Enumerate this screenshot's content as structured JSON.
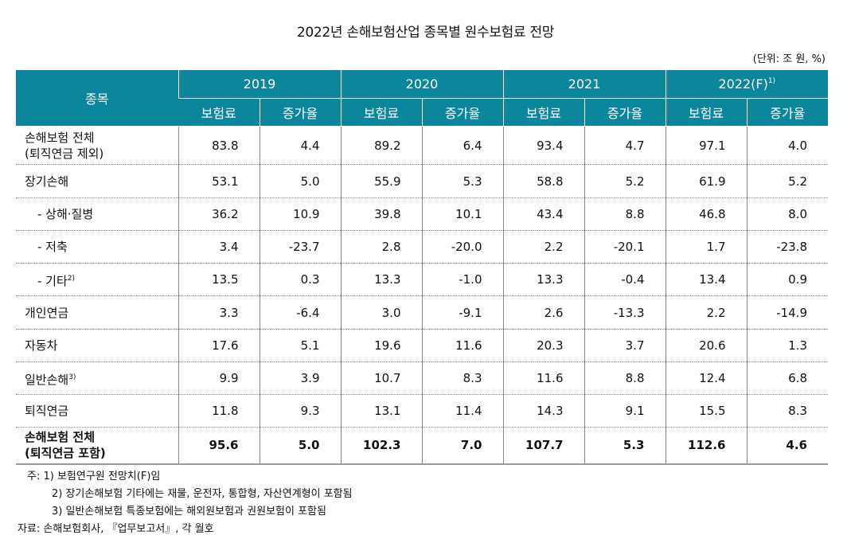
{
  "title": "2022년 손해보험산업 종목별 원수보험료 전망",
  "unit": "(단위: 조 원, %)",
  "table": {
    "item_header": "종목",
    "years": [
      {
        "label": "2019",
        "note": ""
      },
      {
        "label": "2020",
        "note": ""
      },
      {
        "label": "2021",
        "note": ""
      },
      {
        "label": "2022(F)",
        "note": "1)"
      }
    ],
    "sub_headers": [
      "보험료",
      "증가율"
    ],
    "rows": [
      {
        "label": "손해보험 전체",
        "label2": "(퇴직연금 제외)",
        "note": "",
        "indent": false,
        "bold": false,
        "values": [
          "83.8",
          "4.4",
          "89.2",
          "6.4",
          "93.4",
          "4.7",
          "97.1",
          "4.0"
        ]
      },
      {
        "label": "장기손해",
        "label2": "",
        "note": "",
        "indent": false,
        "bold": false,
        "values": [
          "53.1",
          "5.0",
          "55.9",
          "5.3",
          "58.8",
          "5.2",
          "61.9",
          "5.2"
        ]
      },
      {
        "label": "-  상해·질병",
        "label2": "",
        "note": "",
        "indent": true,
        "bold": false,
        "values": [
          "36.2",
          "10.9",
          "39.8",
          "10.1",
          "43.4",
          "8.8",
          "46.8",
          "8.0"
        ]
      },
      {
        "label": "-  저축",
        "label2": "",
        "note": "",
        "indent": true,
        "bold": false,
        "values": [
          "3.4",
          "-23.7",
          "2.8",
          "-20.0",
          "2.2",
          "-20.1",
          "1.7",
          "-23.8"
        ]
      },
      {
        "label": "-  기타",
        "label2": "",
        "note": "2)",
        "indent": true,
        "bold": false,
        "values": [
          "13.5",
          "0.3",
          "13.3",
          "-1.0",
          "13.3",
          "-0.4",
          "13.4",
          "0.9"
        ]
      },
      {
        "label": "개인연금",
        "label2": "",
        "note": "",
        "indent": false,
        "bold": false,
        "values": [
          "3.3",
          "-6.4",
          "3.0",
          "-9.1",
          "2.6",
          "-13.3",
          "2.2",
          "-14.9"
        ]
      },
      {
        "label": "자동차",
        "label2": "",
        "note": "",
        "indent": false,
        "bold": false,
        "values": [
          "17.6",
          "5.1",
          "19.6",
          "11.6",
          "20.3",
          "3.7",
          "20.6",
          "1.3"
        ]
      },
      {
        "label": "일반손해",
        "label2": "",
        "note": "3)",
        "indent": false,
        "bold": false,
        "values": [
          "9.9",
          "3.9",
          "10.7",
          "8.3",
          "11.6",
          "8.8",
          "12.4",
          "6.8"
        ]
      },
      {
        "label": "퇴직연금",
        "label2": "",
        "note": "",
        "indent": false,
        "bold": false,
        "values": [
          "11.8",
          "9.3",
          "13.1",
          "11.4",
          "14.3",
          "9.1",
          "15.5",
          "8.3"
        ]
      },
      {
        "label": "손해보험 전체",
        "label2": "(퇴직연금 포함)",
        "note": "",
        "indent": false,
        "bold": true,
        "values": [
          "95.6",
          "5.0",
          "102.3",
          "7.0",
          "107.7",
          "5.3",
          "112.6",
          "4.6"
        ]
      }
    ]
  },
  "notes": {
    "prefix": "주:",
    "items": [
      "1) 보험연구원 전망치(F)임",
      "2) 장기손해보험 기타에는 재물, 운전자, 통합형, 자산연계형이 포함됨",
      "3) 일반손해보험 특종보험에는 해외원보험과 권원보험이 포함됨"
    ],
    "source": "자료: 손해보험회사, 『업무보고서』, 각 월호"
  },
  "colors": {
    "header_bg": "#0b869d",
    "header_text": "#ffffff",
    "grid": "#888888"
  }
}
